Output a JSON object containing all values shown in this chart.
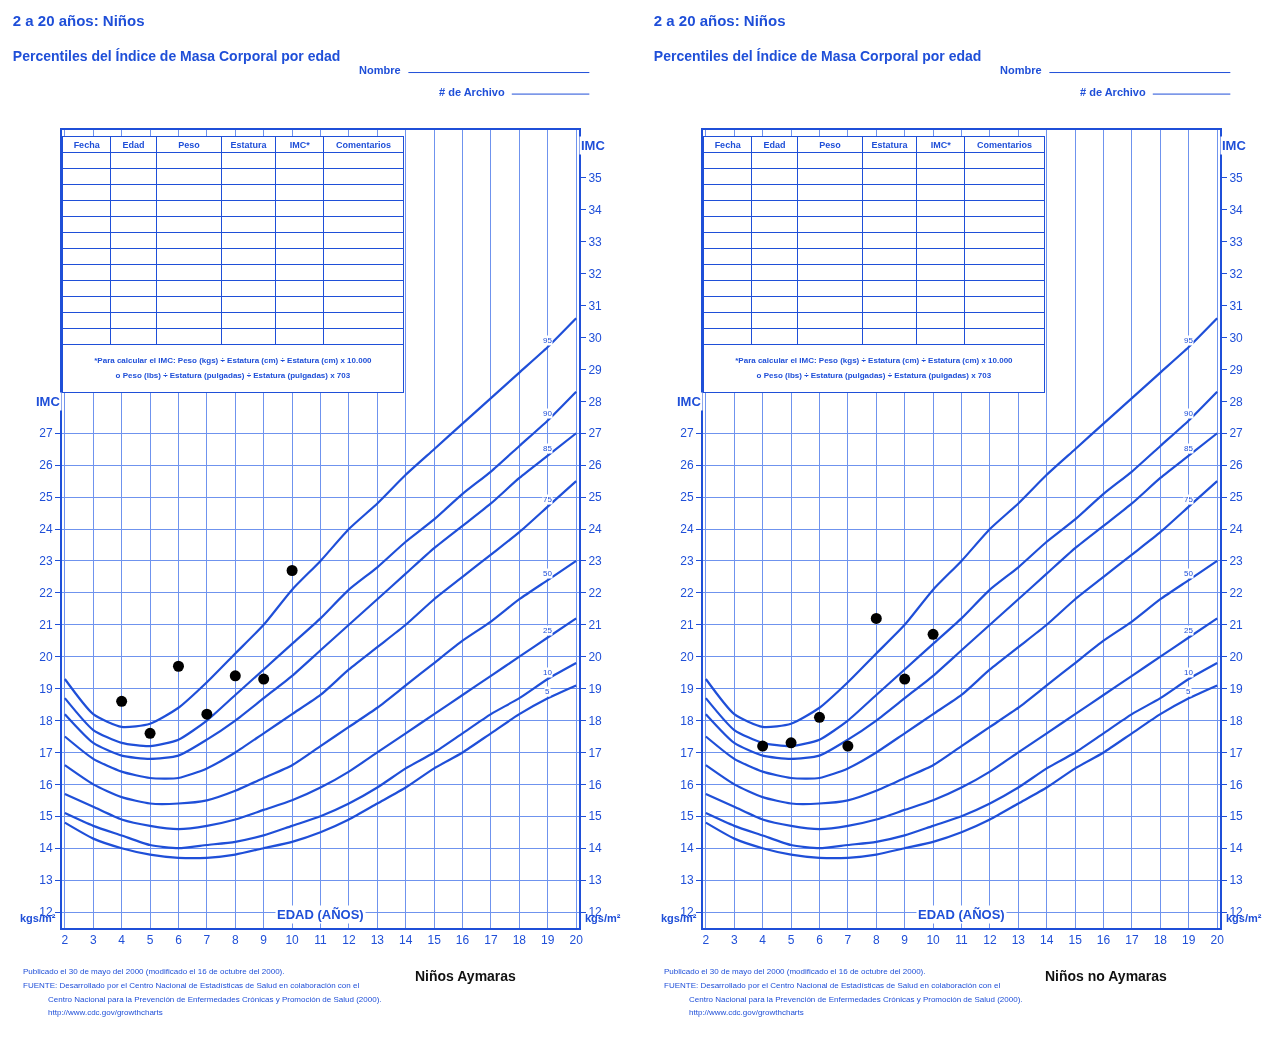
{
  "chart_data": [
    {
      "type": "line",
      "title": "2 a 20 años: Niños",
      "subtitle": "Percentiles del Índice de Masa Corporal por edad",
      "xlabel": "EDAD (AÑOS)",
      "ylabel": "IMC",
      "y2label": "IMC",
      "x": [
        2,
        3,
        4,
        5,
        6,
        7,
        8,
        9,
        10,
        11,
        12,
        13,
        14,
        15,
        16,
        17,
        18,
        19,
        20
      ],
      "xlim": [
        1.9,
        20.1
      ],
      "xticks": [
        2,
        3,
        4,
        5,
        6,
        7,
        8,
        9,
        10,
        11,
        12,
        13,
        14,
        15,
        16,
        17,
        18,
        19,
        20
      ],
      "ylim": [
        11.5,
        36.5
      ],
      "yticks": [
        12,
        13,
        14,
        15,
        16,
        17,
        18,
        19,
        20,
        21,
        22,
        23,
        24,
        25,
        26,
        27
      ],
      "y2lim": [
        11.5,
        36.5
      ],
      "y2ticks": [
        12,
        13,
        14,
        15,
        16,
        17,
        18,
        19,
        20,
        21,
        22,
        23,
        24,
        25,
        26,
        27,
        28,
        29,
        30,
        31,
        32,
        33,
        34,
        35
      ],
      "grid": true,
      "line_style": "solid",
      "series": [
        {
          "name": "95",
          "color": "#1f4fd8",
          "values": [
            19.3,
            18.2,
            17.8,
            17.9,
            18.4,
            19.2,
            20.1,
            21.0,
            22.1,
            23.0,
            24.0,
            24.8,
            25.7,
            26.5,
            27.3,
            28.1,
            28.9,
            29.7,
            30.6
          ]
        },
        {
          "name": "90",
          "color": "#1f4fd8",
          "values": [
            18.7,
            17.7,
            17.3,
            17.2,
            17.4,
            18.0,
            18.8,
            19.6,
            20.4,
            21.2,
            22.1,
            22.8,
            23.6,
            24.3,
            25.1,
            25.8,
            26.6,
            27.4,
            28.3
          ]
        },
        {
          "name": "85",
          "color": "#1f4fd8",
          "values": [
            18.2,
            17.3,
            16.9,
            16.8,
            16.9,
            17.4,
            18.0,
            18.7,
            19.4,
            20.2,
            21.0,
            21.8,
            22.6,
            23.4,
            24.1,
            24.8,
            25.6,
            26.3,
            27.0
          ]
        },
        {
          "name": "75",
          "color": "#1f4fd8",
          "values": [
            17.5,
            16.8,
            16.4,
            16.2,
            16.2,
            16.5,
            17.0,
            17.6,
            18.2,
            18.8,
            19.6,
            20.3,
            21.0,
            21.8,
            22.5,
            23.2,
            23.9,
            24.7,
            25.5
          ]
        },
        {
          "name": "50",
          "color": "#1f4fd8",
          "values": [
            16.6,
            16.0,
            15.6,
            15.4,
            15.4,
            15.5,
            15.8,
            16.2,
            16.6,
            17.2,
            17.8,
            18.4,
            19.1,
            19.8,
            20.5,
            21.1,
            21.8,
            22.4,
            23.0
          ]
        },
        {
          "name": "25",
          "color": "#1f4fd8",
          "values": [
            15.7,
            15.3,
            14.9,
            14.7,
            14.6,
            14.7,
            14.9,
            15.2,
            15.5,
            15.9,
            16.4,
            17.0,
            17.6,
            18.2,
            18.8,
            19.4,
            20.0,
            20.6,
            21.2
          ]
        },
        {
          "name": "10",
          "color": "#1f4fd8",
          "values": [
            15.1,
            14.7,
            14.4,
            14.1,
            14.0,
            14.1,
            14.2,
            14.4,
            14.7,
            15.0,
            15.4,
            15.9,
            16.5,
            17.0,
            17.6,
            18.2,
            18.7,
            19.3,
            19.8
          ]
        },
        {
          "name": "5",
          "color": "#1f4fd8",
          "values": [
            14.8,
            14.3,
            14.0,
            13.8,
            13.7,
            13.7,
            13.8,
            14.0,
            14.2,
            14.5,
            14.9,
            15.4,
            15.9,
            16.5,
            17.0,
            17.6,
            18.2,
            18.7,
            19.1
          ]
        },
        {
          "type": "scatter",
          "color": "#000000",
          "marker": "circle",
          "x": [
            4,
            5,
            6,
            7,
            8,
            9,
            10
          ],
          "values": [
            18.6,
            17.6,
            19.7,
            18.2,
            19.4,
            19.3,
            22.7
          ]
        }
      ],
      "annotations": [
        "kgs/m²",
        "kgs/m²",
        "Nombre",
        "# de Archivo",
        "Fecha",
        "Edad",
        "Peso",
        "Estatura",
        "IMC*",
        "Comentarios",
        "*Para calcular el IMC: Peso (kgs) ÷ Estatura (cm) ÷ Estatura (cm) x 10.000",
        "o Peso (lbs) ÷ Estatura (pulgadas) ÷ Estatura (pulgadas) x 703",
        "Publicado el 30 de mayo del 2000 (modificado el 16 de octubre del 2000).",
        "FUENTE: Desarrollado por el Centro Nacional de Estadísticas de Salud en colaboración con el",
        "Centro Nacional para la Prevención de Enfermedades Crónicas y Promoción de Salud (2000).",
        "http://www.cdc.gov/growthcharts",
        "Niños Aymaras"
      ]
    },
    {
      "type": "line",
      "title": "2 a 20 años: Niños",
      "subtitle": "Percentiles del Índice de Masa Corporal por edad",
      "xlabel": "EDAD (AÑOS)",
      "ylabel": "IMC",
      "y2label": "IMC",
      "x": [
        2,
        3,
        4,
        5,
        6,
        7,
        8,
        9,
        10,
        11,
        12,
        13,
        14,
        15,
        16,
        17,
        18,
        19,
        20
      ],
      "xlim": [
        1.9,
        20.1
      ],
      "xticks": [
        2,
        3,
        4,
        5,
        6,
        7,
        8,
        9,
        10,
        11,
        12,
        13,
        14,
        15,
        16,
        17,
        18,
        19,
        20
      ],
      "ylim": [
        11.5,
        36.5
      ],
      "yticks": [
        12,
        13,
        14,
        15,
        16,
        17,
        18,
        19,
        20,
        21,
        22,
        23,
        24,
        25,
        26,
        27
      ],
      "y2lim": [
        11.5,
        36.5
      ],
      "y2ticks": [
        12,
        13,
        14,
        15,
        16,
        17,
        18,
        19,
        20,
        21,
        22,
        23,
        24,
        25,
        26,
        27,
        28,
        29,
        30,
        31,
        32,
        33,
        34,
        35
      ],
      "grid": true,
      "line_style": "solid",
      "series": [
        {
          "name": "95",
          "color": "#1f4fd8",
          "values": [
            19.3,
            18.2,
            17.8,
            17.9,
            18.4,
            19.2,
            20.1,
            21.0,
            22.1,
            23.0,
            24.0,
            24.8,
            25.7,
            26.5,
            27.3,
            28.1,
            28.9,
            29.7,
            30.6
          ]
        },
        {
          "name": "90",
          "color": "#1f4fd8",
          "values": [
            18.7,
            17.7,
            17.3,
            17.2,
            17.4,
            18.0,
            18.8,
            19.6,
            20.4,
            21.2,
            22.1,
            22.8,
            23.6,
            24.3,
            25.1,
            25.8,
            26.6,
            27.4,
            28.3
          ]
        },
        {
          "name": "85",
          "color": "#1f4fd8",
          "values": [
            18.2,
            17.3,
            16.9,
            16.8,
            16.9,
            17.4,
            18.0,
            18.7,
            19.4,
            20.2,
            21.0,
            21.8,
            22.6,
            23.4,
            24.1,
            24.8,
            25.6,
            26.3,
            27.0
          ]
        },
        {
          "name": "75",
          "color": "#1f4fd8",
          "values": [
            17.5,
            16.8,
            16.4,
            16.2,
            16.2,
            16.5,
            17.0,
            17.6,
            18.2,
            18.8,
            19.6,
            20.3,
            21.0,
            21.8,
            22.5,
            23.2,
            23.9,
            24.7,
            25.5
          ]
        },
        {
          "name": "50",
          "color": "#1f4fd8",
          "values": [
            16.6,
            16.0,
            15.6,
            15.4,
            15.4,
            15.5,
            15.8,
            16.2,
            16.6,
            17.2,
            17.8,
            18.4,
            19.1,
            19.8,
            20.5,
            21.1,
            21.8,
            22.4,
            23.0
          ]
        },
        {
          "name": "25",
          "color": "#1f4fd8",
          "values": [
            15.7,
            15.3,
            14.9,
            14.7,
            14.6,
            14.7,
            14.9,
            15.2,
            15.5,
            15.9,
            16.4,
            17.0,
            17.6,
            18.2,
            18.8,
            19.4,
            20.0,
            20.6,
            21.2
          ]
        },
        {
          "name": "10",
          "color": "#1f4fd8",
          "values": [
            15.1,
            14.7,
            14.4,
            14.1,
            14.0,
            14.1,
            14.2,
            14.4,
            14.7,
            15.0,
            15.4,
            15.9,
            16.5,
            17.0,
            17.6,
            18.2,
            18.7,
            19.3,
            19.8
          ]
        },
        {
          "name": "5",
          "color": "#1f4fd8",
          "values": [
            14.8,
            14.3,
            14.0,
            13.8,
            13.7,
            13.7,
            13.8,
            14.0,
            14.2,
            14.5,
            14.9,
            15.4,
            15.9,
            16.5,
            17.0,
            17.6,
            18.2,
            18.7,
            19.1
          ]
        },
        {
          "type": "scatter",
          "color": "#000000",
          "marker": "circle",
          "x": [
            4,
            5,
            6,
            7,
            8,
            9,
            10
          ],
          "values": [
            17.2,
            17.3,
            18.1,
            17.2,
            21.2,
            19.3,
            20.7
          ]
        }
      ],
      "annotations": [
        "kgs/m²",
        "kgs/m²",
        "Nombre",
        "# de Archivo",
        "Fecha",
        "Edad",
        "Peso",
        "Estatura",
        "IMC*",
        "Comentarios",
        "*Para calcular el IMC: Peso (kgs) ÷ Estatura (cm) ÷ Estatura (cm) x 10.000",
        "o Peso (lbs) ÷ Estatura (pulgadas) ÷ Estatura (pulgadas) x 703",
        "Publicado el 30 de mayo del 2000 (modificado el 16 de octubre del 2000).",
        "FUENTE: Desarrollado por el Centro Nacional de Estadísticas de Salud en colaboración con el",
        "Centro Nacional para la Prevención de Enfermedades Crónicas y Promoción de Salud (2000).",
        "http://www.cdc.gov/growthcharts",
        "Niños no Aymaras"
      ]
    }
  ]
}
